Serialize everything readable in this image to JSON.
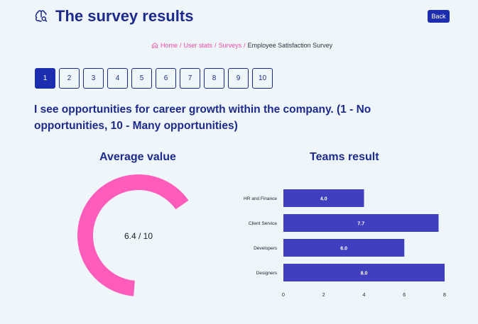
{
  "header": {
    "title": "The survey results",
    "icon": "brain-search-icon",
    "back_label": "Back"
  },
  "breadcrumb": {
    "home": "Home",
    "sep": "/",
    "user_stats": "User stats",
    "surveys": "Surveys",
    "current": "Employee Satisfaction Survey"
  },
  "pagination": {
    "pages": [
      "1",
      "2",
      "3",
      "4",
      "5",
      "6",
      "7",
      "8",
      "9",
      "10"
    ],
    "active": "1"
  },
  "question": "I see opportunities for career growth within the company. (1 - No opportunities, 10 - Many opportunities)",
  "average": {
    "heading": "Average value",
    "value": 6.4,
    "max": 10,
    "label": "6.4 / 10",
    "color": "#ff5cbc"
  },
  "teams": {
    "heading": "Teams result",
    "bar_color": "#3f3fbf"
  },
  "chart_data": [
    {
      "type": "bar",
      "orientation": "horizontal",
      "title": "Teams result",
      "categories": [
        "HR and Finance",
        "Client Service",
        "Developers",
        "Designers"
      ],
      "values": [
        4.0,
        7.7,
        6.0,
        8.0
      ],
      "value_labels": [
        "4.0",
        "7.7",
        "6.0",
        "8.0"
      ],
      "xticks": [
        "0",
        "2",
        "4",
        "6",
        "8"
      ],
      "xlim": [
        0,
        8
      ]
    },
    {
      "type": "pie",
      "title": "Average value",
      "values": [
        6.4,
        3.6
      ],
      "label": "6.4 / 10"
    }
  ]
}
